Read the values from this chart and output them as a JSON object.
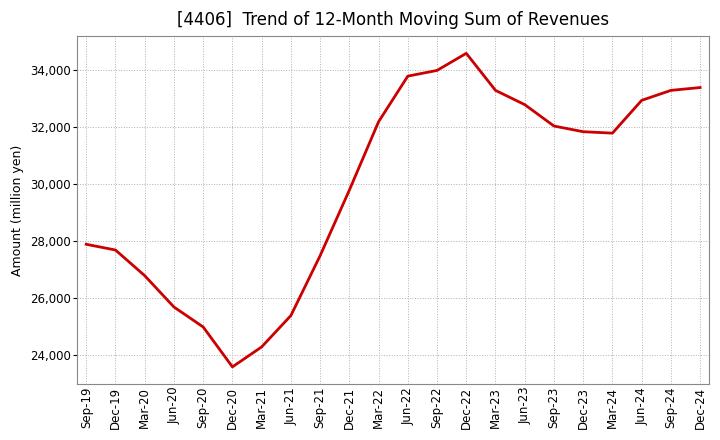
{
  "title": "[4406]  Trend of 12-Month Moving Sum of Revenues",
  "ylabel": "Amount (million yen)",
  "line_color": "#cc0000",
  "background_color": "#ffffff",
  "plot_bg_color": "#ffffff",
  "grid_color": "#b0b0b0",
  "labels": [
    "Sep-19",
    "Dec-19",
    "Mar-20",
    "Jun-20",
    "Sep-20",
    "Dec-20",
    "Mar-21",
    "Jun-21",
    "Sep-21",
    "Dec-21",
    "Mar-22",
    "Jun-22",
    "Sep-22",
    "Dec-22",
    "Mar-23",
    "Jun-23",
    "Sep-23",
    "Dec-23",
    "Mar-24",
    "Jun-24",
    "Sep-24",
    "Dec-24"
  ],
  "values": [
    27900,
    27700,
    26800,
    25700,
    25000,
    23600,
    24300,
    25400,
    27500,
    29800,
    32200,
    33800,
    34000,
    34600,
    33300,
    32800,
    32050,
    31850,
    31800,
    32950,
    33300,
    33400
  ],
  "ylim_min": 23000,
  "ylim_max": 35200,
  "yticks": [
    24000,
    26000,
    28000,
    30000,
    32000,
    34000
  ],
  "title_fontsize": 12,
  "axis_fontsize": 9,
  "tick_fontsize": 8.5,
  "line_width": 2.0
}
